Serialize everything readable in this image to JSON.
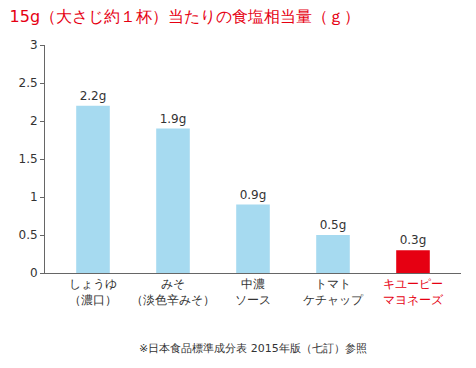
{
  "chart_data": {
    "type": "bar",
    "title": "15g（大さじ約１杯）当たりの食塩相当量（ｇ）",
    "categories": [
      "しょうゆ\n（濃口）",
      "みそ\n（淡色辛みそ）",
      "中濃\nソース",
      "トマト\nケチャップ",
      "キユーピー\nマヨネーズ"
    ],
    "values": [
      2.2,
      1.9,
      0.9,
      0.5,
      0.3
    ],
    "value_labels": [
      "2.2g",
      "1.9g",
      "0.9g",
      "0.5g",
      "0.3g"
    ],
    "colors": [
      "#a6daf0",
      "#a6daf0",
      "#a6daf0",
      "#a6daf0",
      "#e60012"
    ],
    "ylim": [
      0,
      3
    ],
    "yticks": [
      0,
      0.5,
      1,
      1.5,
      2,
      2.5,
      3
    ],
    "grid": false,
    "data_labels": true,
    "annotations": [
      "※日本食品標準成分表 2015年版（七訂）参照"
    ]
  }
}
